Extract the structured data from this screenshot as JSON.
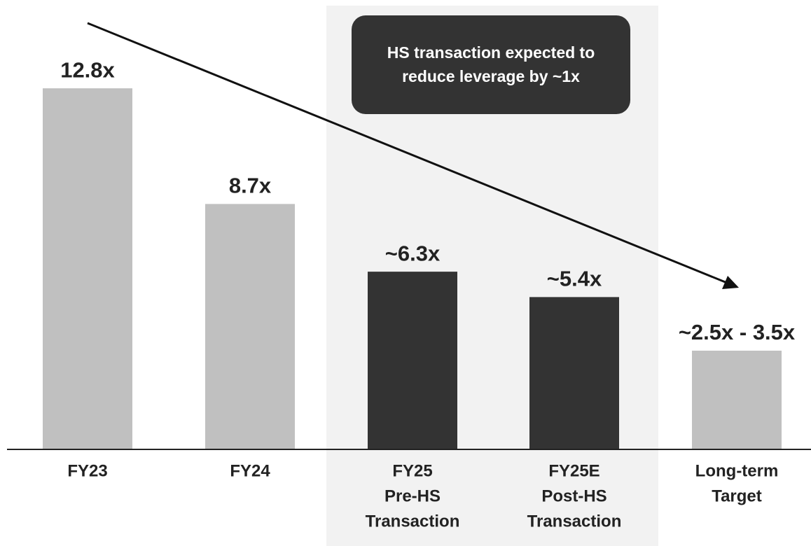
{
  "chart_data": {
    "type": "bar",
    "categories": [
      [
        "FY23"
      ],
      [
        "FY24"
      ],
      [
        "FY25",
        "Pre-HS",
        "Transaction"
      ],
      [
        "FY25E",
        "Post-HS",
        "Transaction"
      ],
      [
        "Long-term",
        "Target"
      ]
    ],
    "values": [
      12.8,
      8.7,
      6.3,
      5.4,
      3.5
    ],
    "value_labels": [
      "12.8x",
      "8.7x",
      "~6.3x",
      "~5.4x",
      "~2.5x - 3.5x"
    ],
    "colors": [
      "#c0c0c0",
      "#c0c0c0",
      "#333333",
      "#333333",
      "#c0c0c0"
    ],
    "ylim": [
      0,
      15
    ],
    "annotation": [
      "HS transaction expected to",
      "reduce leverage by ~1x"
    ]
  }
}
